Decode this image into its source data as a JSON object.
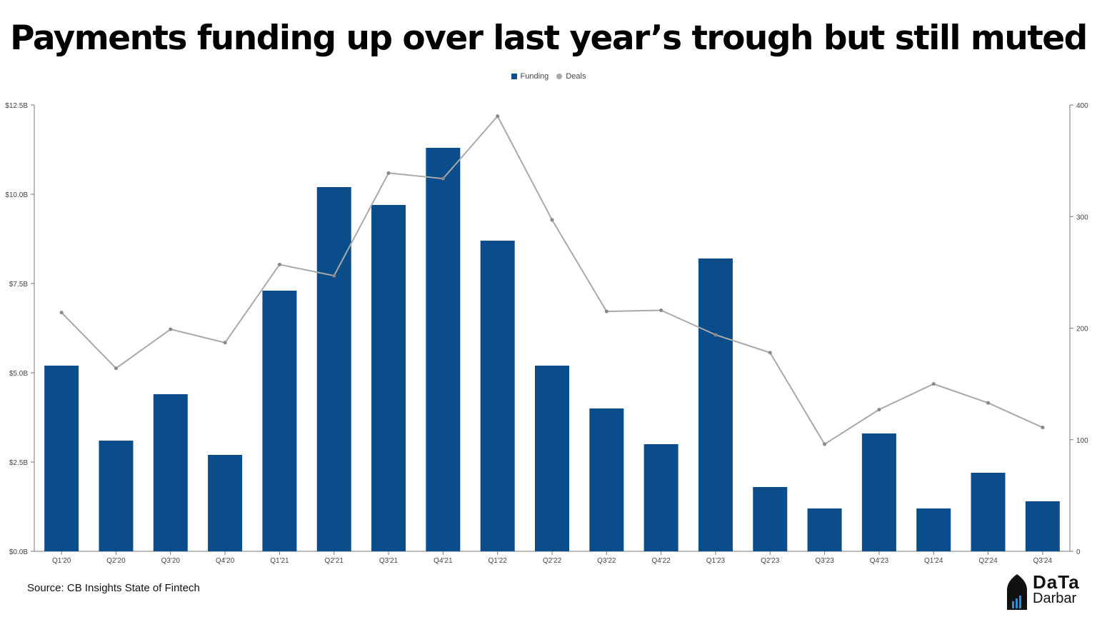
{
  "title": "Payments funding up over last year’s trough but still muted",
  "source": "Source: CB Insights State of Fintech",
  "logo": {
    "line1": "DaTa",
    "line2": "Darbar"
  },
  "colors": {
    "funding": "#0b4c8a",
    "deals": "#a9a9a9",
    "axis": "#777777"
  },
  "chart_data": {
    "type": "bar",
    "categories": [
      "Q1'20",
      "Q2'20",
      "Q3'20",
      "Q4'20",
      "Q1'21",
      "Q2'21",
      "Q3'21",
      "Q4'21",
      "Q1'22",
      "Q2'22",
      "Q3'22",
      "Q4'22",
      "Q1'23",
      "Q2'23",
      "Q3'23",
      "Q4'23",
      "Q1'24",
      "Q2'24",
      "Q3'24"
    ],
    "series": [
      {
        "name": "Funding",
        "type": "bar",
        "axis": "left",
        "values": [
          5.2,
          3.1,
          4.4,
          2.7,
          7.3,
          10.2,
          9.7,
          11.3,
          8.7,
          5.2,
          4.0,
          3.0,
          8.2,
          1.8,
          1.2,
          3.3,
          1.2,
          2.2,
          1.4
        ]
      },
      {
        "name": "Deals",
        "type": "line",
        "axis": "right",
        "values": [
          214,
          164,
          199,
          187,
          257,
          247,
          339,
          334,
          390,
          297,
          215,
          216,
          194,
          178,
          96,
          127,
          150,
          133,
          111
        ]
      }
    ],
    "yLeft": {
      "min": 0,
      "max": 12.5,
      "ticks": [
        "$0.0B",
        "$2.5B",
        "$5.0B",
        "$7.5B",
        "$10.0B",
        "$12.5B"
      ],
      "tickValues": [
        0,
        2.5,
        5,
        7.5,
        10,
        12.5
      ]
    },
    "yRight": {
      "min": 0,
      "max": 400,
      "ticks": [
        "0",
        "100",
        "200",
        "300",
        "400"
      ],
      "tickValues": [
        0,
        100,
        200,
        300,
        400
      ]
    },
    "legend": "top-center",
    "grid": false
  }
}
